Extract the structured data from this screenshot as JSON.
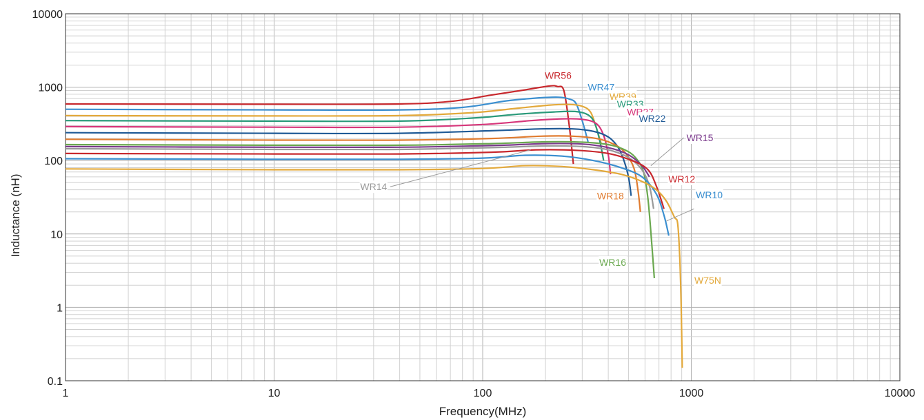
{
  "chart_data": {
    "type": "line",
    "title": "",
    "xlabel": "Frequency(MHz)",
    "ylabel": "Inductance (nH)",
    "x_scale": "log",
    "y_scale": "log",
    "xlim": [
      1,
      10000
    ],
    "ylim": [
      0.1,
      10000
    ],
    "grid": true,
    "legend": "inline labels",
    "x_ticks": [
      "1",
      "10",
      "100",
      "1000",
      "10000"
    ],
    "y_ticks": [
      "0.1",
      "1",
      "10",
      "100",
      "1000",
      "10000"
    ],
    "series": [
      {
        "name": "WR56",
        "color": "#c8282d",
        "points": [
          [
            1,
            590
          ],
          [
            10,
            585
          ],
          [
            40,
            590
          ],
          [
            70,
            640
          ],
          [
            110,
            780
          ],
          [
            160,
            920
          ],
          [
            210,
            1040
          ],
          [
            228,
            1020
          ],
          [
            245,
            900
          ],
          [
            260,
            300
          ],
          [
            272,
            90
          ]
        ],
        "label_at": [
          230,
          1450
        ],
        "label_box": false
      },
      {
        "name": "WR47",
        "color": "#3b8fd0",
        "points": [
          [
            1,
            500
          ],
          [
            10,
            490
          ],
          [
            40,
            490
          ],
          [
            80,
            530
          ],
          [
            130,
            650
          ],
          [
            180,
            710
          ],
          [
            230,
            730
          ],
          [
            260,
            690
          ],
          [
            280,
            600
          ],
          [
            300,
            350
          ],
          [
            320,
            180
          ]
        ],
        "label_at": [
          370,
          1000
        ],
        "label_box": true
      },
      {
        "name": "WR39",
        "color": "#e3a93b",
        "points": [
          [
            1,
            410
          ],
          [
            10,
            405
          ],
          [
            40,
            410
          ],
          [
            90,
            450
          ],
          [
            150,
            520
          ],
          [
            210,
            570
          ],
          [
            260,
            580
          ],
          [
            300,
            550
          ],
          [
            330,
            450
          ],
          [
            355,
            250
          ],
          [
            370,
            170
          ]
        ],
        "label_at": [
          470,
          750
        ],
        "label_box": true
      },
      {
        "name": "WR33",
        "color": "#2a9a7a",
        "points": [
          [
            1,
            350
          ],
          [
            10,
            345
          ],
          [
            40,
            345
          ],
          [
            90,
            380
          ],
          [
            150,
            430
          ],
          [
            220,
            460
          ],
          [
            280,
            465
          ],
          [
            320,
            420
          ],
          [
            345,
            320
          ],
          [
            365,
            180
          ],
          [
            380,
            100
          ]
        ],
        "label_at": [
          510,
          590
        ],
        "label_box": true
      },
      {
        "name": "WR27",
        "color": "#d6367a",
        "points": [
          [
            1,
            290
          ],
          [
            10,
            285
          ],
          [
            40,
            285
          ],
          [
            100,
            310
          ],
          [
            170,
            350
          ],
          [
            240,
            370
          ],
          [
            300,
            365
          ],
          [
            350,
            320
          ],
          [
            380,
            220
          ],
          [
            400,
            120
          ],
          [
            410,
            65
          ]
        ],
        "label_at": [
          570,
          460
        ],
        "label_box": true
      },
      {
        "name": "WR22",
        "color": "#1f5a96",
        "points": [
          [
            1,
            240
          ],
          [
            10,
            235
          ],
          [
            40,
            235
          ],
          [
            110,
            255
          ],
          [
            190,
            270
          ],
          [
            270,
            270
          ],
          [
            340,
            250
          ],
          [
            400,
            210
          ],
          [
            440,
            160
          ],
          [
            470,
            110
          ],
          [
            500,
            60
          ],
          [
            515,
            33
          ]
        ],
        "label_at": [
          650,
          375
        ],
        "label_box": true
      },
      {
        "name": "WR18",
        "color": "#e07c30",
        "points": [
          [
            1,
            195
          ],
          [
            10,
            190
          ],
          [
            40,
            190
          ],
          [
            110,
            200
          ],
          [
            190,
            215
          ],
          [
            270,
            215
          ],
          [
            350,
            200
          ],
          [
            420,
            170
          ],
          [
            480,
            130
          ],
          [
            530,
            80
          ],
          [
            555,
            40
          ],
          [
            570,
            20
          ]
        ],
        "label_at": [
          410,
          33
        ],
        "label_box": true
      },
      {
        "name": "WR16",
        "color": "#6aa84f",
        "points": [
          [
            1,
            165
          ],
          [
            10,
            162
          ],
          [
            40,
            162
          ],
          [
            110,
            170
          ],
          [
            200,
            180
          ],
          [
            300,
            178
          ],
          [
            400,
            165
          ],
          [
            480,
            140
          ],
          [
            540,
            110
          ],
          [
            590,
            70
          ],
          [
            620,
            30
          ],
          [
            645,
            8
          ],
          [
            665,
            2.5
          ]
        ],
        "label_at": [
          420,
          4.1
        ],
        "label_box": true
      },
      {
        "name": "WR15",
        "color": "#7b3a8c",
        "points": [
          [
            1,
            155
          ],
          [
            10,
            152
          ],
          [
            40,
            152
          ],
          [
            110,
            160
          ],
          [
            200,
            170
          ],
          [
            300,
            168
          ],
          [
            400,
            150
          ],
          [
            500,
            120
          ],
          [
            580,
            85
          ],
          [
            630,
            60
          ]
        ],
        "label_at": [
          1100,
          205
        ],
        "label_box": true,
        "leader": [
          [
            920,
            205
          ],
          [
            640,
            85
          ]
        ]
      },
      {
        "name": "WR14",
        "color": "#9a9a9a",
        "points": [
          [
            1,
            145
          ],
          [
            10,
            142
          ],
          [
            40,
            142
          ],
          [
            110,
            150
          ],
          [
            200,
            158
          ],
          [
            300,
            155
          ],
          [
            400,
            140
          ],
          [
            500,
            110
          ],
          [
            580,
            75
          ],
          [
            630,
            45
          ],
          [
            660,
            22
          ]
        ],
        "label_at": [
          30,
          44
        ],
        "label_box": true,
        "leader": [
          [
            36,
            44
          ],
          [
            170,
            140
          ]
        ]
      },
      {
        "name": "WR12",
        "color": "#c8282d",
        "points": [
          [
            1,
            125
          ],
          [
            10,
            123
          ],
          [
            40,
            123
          ],
          [
            110,
            130
          ],
          [
            180,
            140
          ],
          [
            280,
            138
          ],
          [
            400,
            125
          ],
          [
            520,
            100
          ],
          [
            620,
            75
          ],
          [
            680,
            45
          ],
          [
            740,
            22
          ]
        ],
        "label_at": [
          900,
          56
        ],
        "label_box": true
      },
      {
        "name": "WR10",
        "color": "#3b8fd0",
        "points": [
          [
            1,
            106
          ],
          [
            10,
            104
          ],
          [
            40,
            104
          ],
          [
            100,
            108
          ],
          [
            160,
            118
          ],
          [
            240,
            115
          ],
          [
            340,
            100
          ],
          [
            460,
            80
          ],
          [
            580,
            60
          ],
          [
            680,
            35
          ],
          [
            740,
            18
          ],
          [
            780,
            9.5
          ]
        ],
        "label_at": [
          1220,
          34
        ],
        "label_box": true
      },
      {
        "name": "W75N",
        "color": "#e3a93b",
        "points": [
          [
            1,
            77
          ],
          [
            10,
            75
          ],
          [
            40,
            75
          ],
          [
            100,
            78
          ],
          [
            160,
            85
          ],
          [
            240,
            83
          ],
          [
            340,
            75
          ],
          [
            460,
            65
          ],
          [
            580,
            52
          ],
          [
            680,
            40
          ],
          [
            760,
            28
          ],
          [
            830,
            17
          ],
          [
            860,
            14
          ],
          [
            880,
            5
          ],
          [
            895,
            1
          ],
          [
            905,
            0.15
          ]
        ],
        "label_at": [
          1200,
          2.35
        ],
        "label_box": true,
        "leader": [
          [
            1030,
            22
          ],
          [
            760,
            15
          ]
        ]
      }
    ]
  }
}
